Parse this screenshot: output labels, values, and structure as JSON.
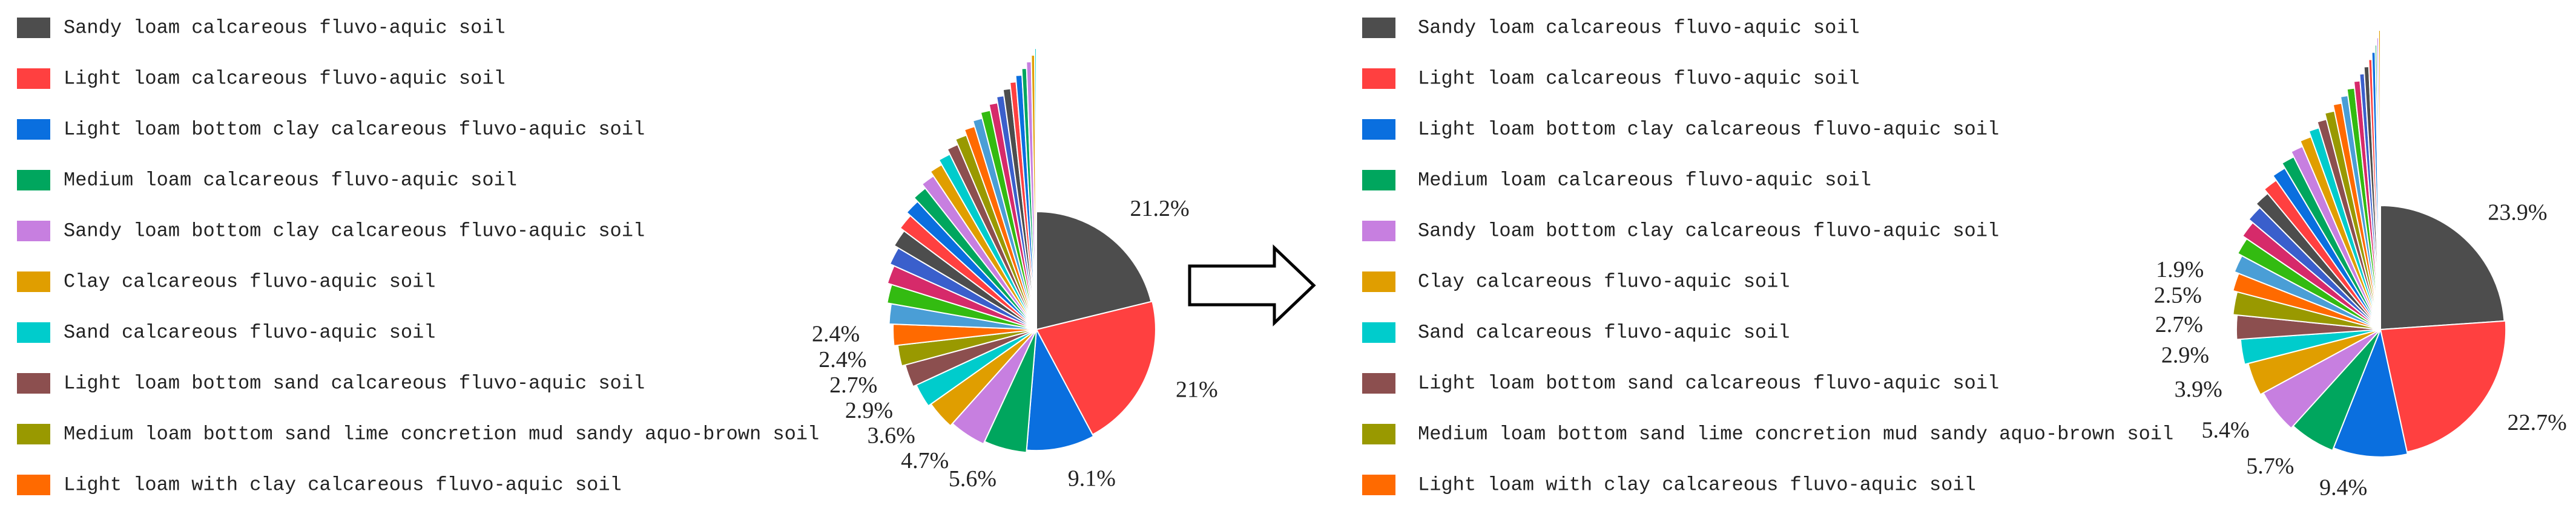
{
  "chart_data": [
    {
      "type": "pie",
      "categories": [
        "Sandy loam calcareous fluvo-aquic soil",
        "Light loam calcareous fluvo-aquic soil",
        "Light loam bottom clay calcareous fluvo-aquic soil",
        "Medium loam calcareous fluvo-aquic soil",
        "Sandy loam bottom clay calcareous fluvo-aquic soil",
        "Clay calcareous fluvo-aquic soil",
        "Sand calcareous fluvo-aquic soil",
        "Light loam bottom sand calcareous fluvo-aquic soil",
        "Medium loam bottom sand lime concretion mud sandy aquo-brown soil",
        "Light loam with clay  calcareous fluvo-aquic soil",
        null,
        null,
        null,
        null,
        null,
        null,
        null,
        null,
        null,
        null,
        null,
        null,
        null,
        null,
        null,
        null,
        null,
        null,
        null,
        null,
        null,
        null,
        null,
        null,
        null
      ],
      "values": [
        21.2,
        21,
        9.1,
        5.6,
        4.7,
        3.6,
        2.9,
        2.7,
        2.4,
        2.4,
        2.2,
        2.0,
        1.9,
        1.8,
        1.7,
        1.5,
        1.4,
        1.3,
        1.2,
        1.1,
        1.0,
        0.9,
        0.9,
        0.8,
        0.7,
        0.7,
        0.6,
        0.5,
        0.5,
        0.4,
        0.4,
        0.3,
        0.3,
        0.2,
        0.1
      ],
      "value_labels": [
        "21.2%",
        "21%",
        "9.1%",
        "5.6%",
        "4.7%",
        "3.6%",
        "2.9%",
        "2.7%",
        "2.4%",
        "2.4%",
        null,
        null,
        null,
        null,
        null,
        null,
        null,
        null,
        null,
        null,
        null,
        null,
        null,
        null,
        null,
        null,
        null,
        null,
        null,
        null,
        null,
        null,
        null,
        null,
        null
      ],
      "colors": [
        "#4d4d4d",
        "#ff4040",
        "#0a6fdf",
        "#00a65e",
        "#c77fe0",
        "#e09e00",
        "#00cccc",
        "#8c4f4f",
        "#999900",
        "#ff6a00",
        "#4a9ed6",
        "#33bb11",
        "#d62a6a",
        "#3a5fcc"
      ]
    },
    {
      "type": "pie",
      "categories": [
        "Sandy loam calcareous fluvo-aquic soil",
        "Light loam calcareous fluvo-aquic soil",
        "Light loam bottom clay calcareous fluvo-aquic soil",
        "Medium loam calcareous fluvo-aquic soil",
        "Sandy loam bottom clay calcareous fluvo-aquic soil",
        "Clay calcareous fluvo-aquic soil",
        "Sand calcareous fluvo-aquic soil",
        "Light loam bottom sand calcareous fluvo-aquic soil",
        "Medium loam bottom sand lime concretion mud sandy aquo-brown soil",
        "Light loam with clay  calcareous fluvo-aquic soil",
        null,
        null,
        null,
        null,
        null,
        null,
        null,
        null,
        null,
        null,
        null,
        null,
        null,
        null,
        null,
        null,
        null,
        null,
        null,
        null,
        null,
        null,
        null,
        null
      ],
      "values": [
        23.9,
        22.7,
        9.4,
        5.7,
        5.4,
        3.9,
        2.9,
        2.7,
        2.5,
        1.9,
        1.8,
        1.7,
        1.6,
        1.5,
        1.4,
        1.3,
        1.2,
        1.1,
        1.0,
        0.9,
        0.8,
        0.7,
        0.7,
        0.6,
        0.5,
        0.5,
        0.4,
        0.3,
        0.3,
        0.2,
        0.2,
        0.1,
        0.1,
        0.1
      ],
      "value_labels": [
        "23.9%",
        "22.7%",
        "9.4%",
        "5.7%",
        "5.4%",
        "3.9%",
        "2.9%",
        "2.7%",
        "2.5%",
        "1.9%",
        null,
        null,
        null,
        null,
        null,
        null,
        null,
        null,
        null,
        null,
        null,
        null,
        null,
        null,
        null,
        null,
        null,
        null,
        null,
        null,
        null,
        null,
        null,
        null
      ],
      "colors": [
        "#4d4d4d",
        "#ff4040",
        "#0a6fdf",
        "#00a65e",
        "#c77fe0",
        "#e09e00",
        "#00cccc",
        "#8c4f4f",
        "#999900",
        "#ff6a00",
        "#4a9ed6",
        "#33bb11",
        "#d62a6a",
        "#3a5fcc"
      ]
    }
  ]
}
